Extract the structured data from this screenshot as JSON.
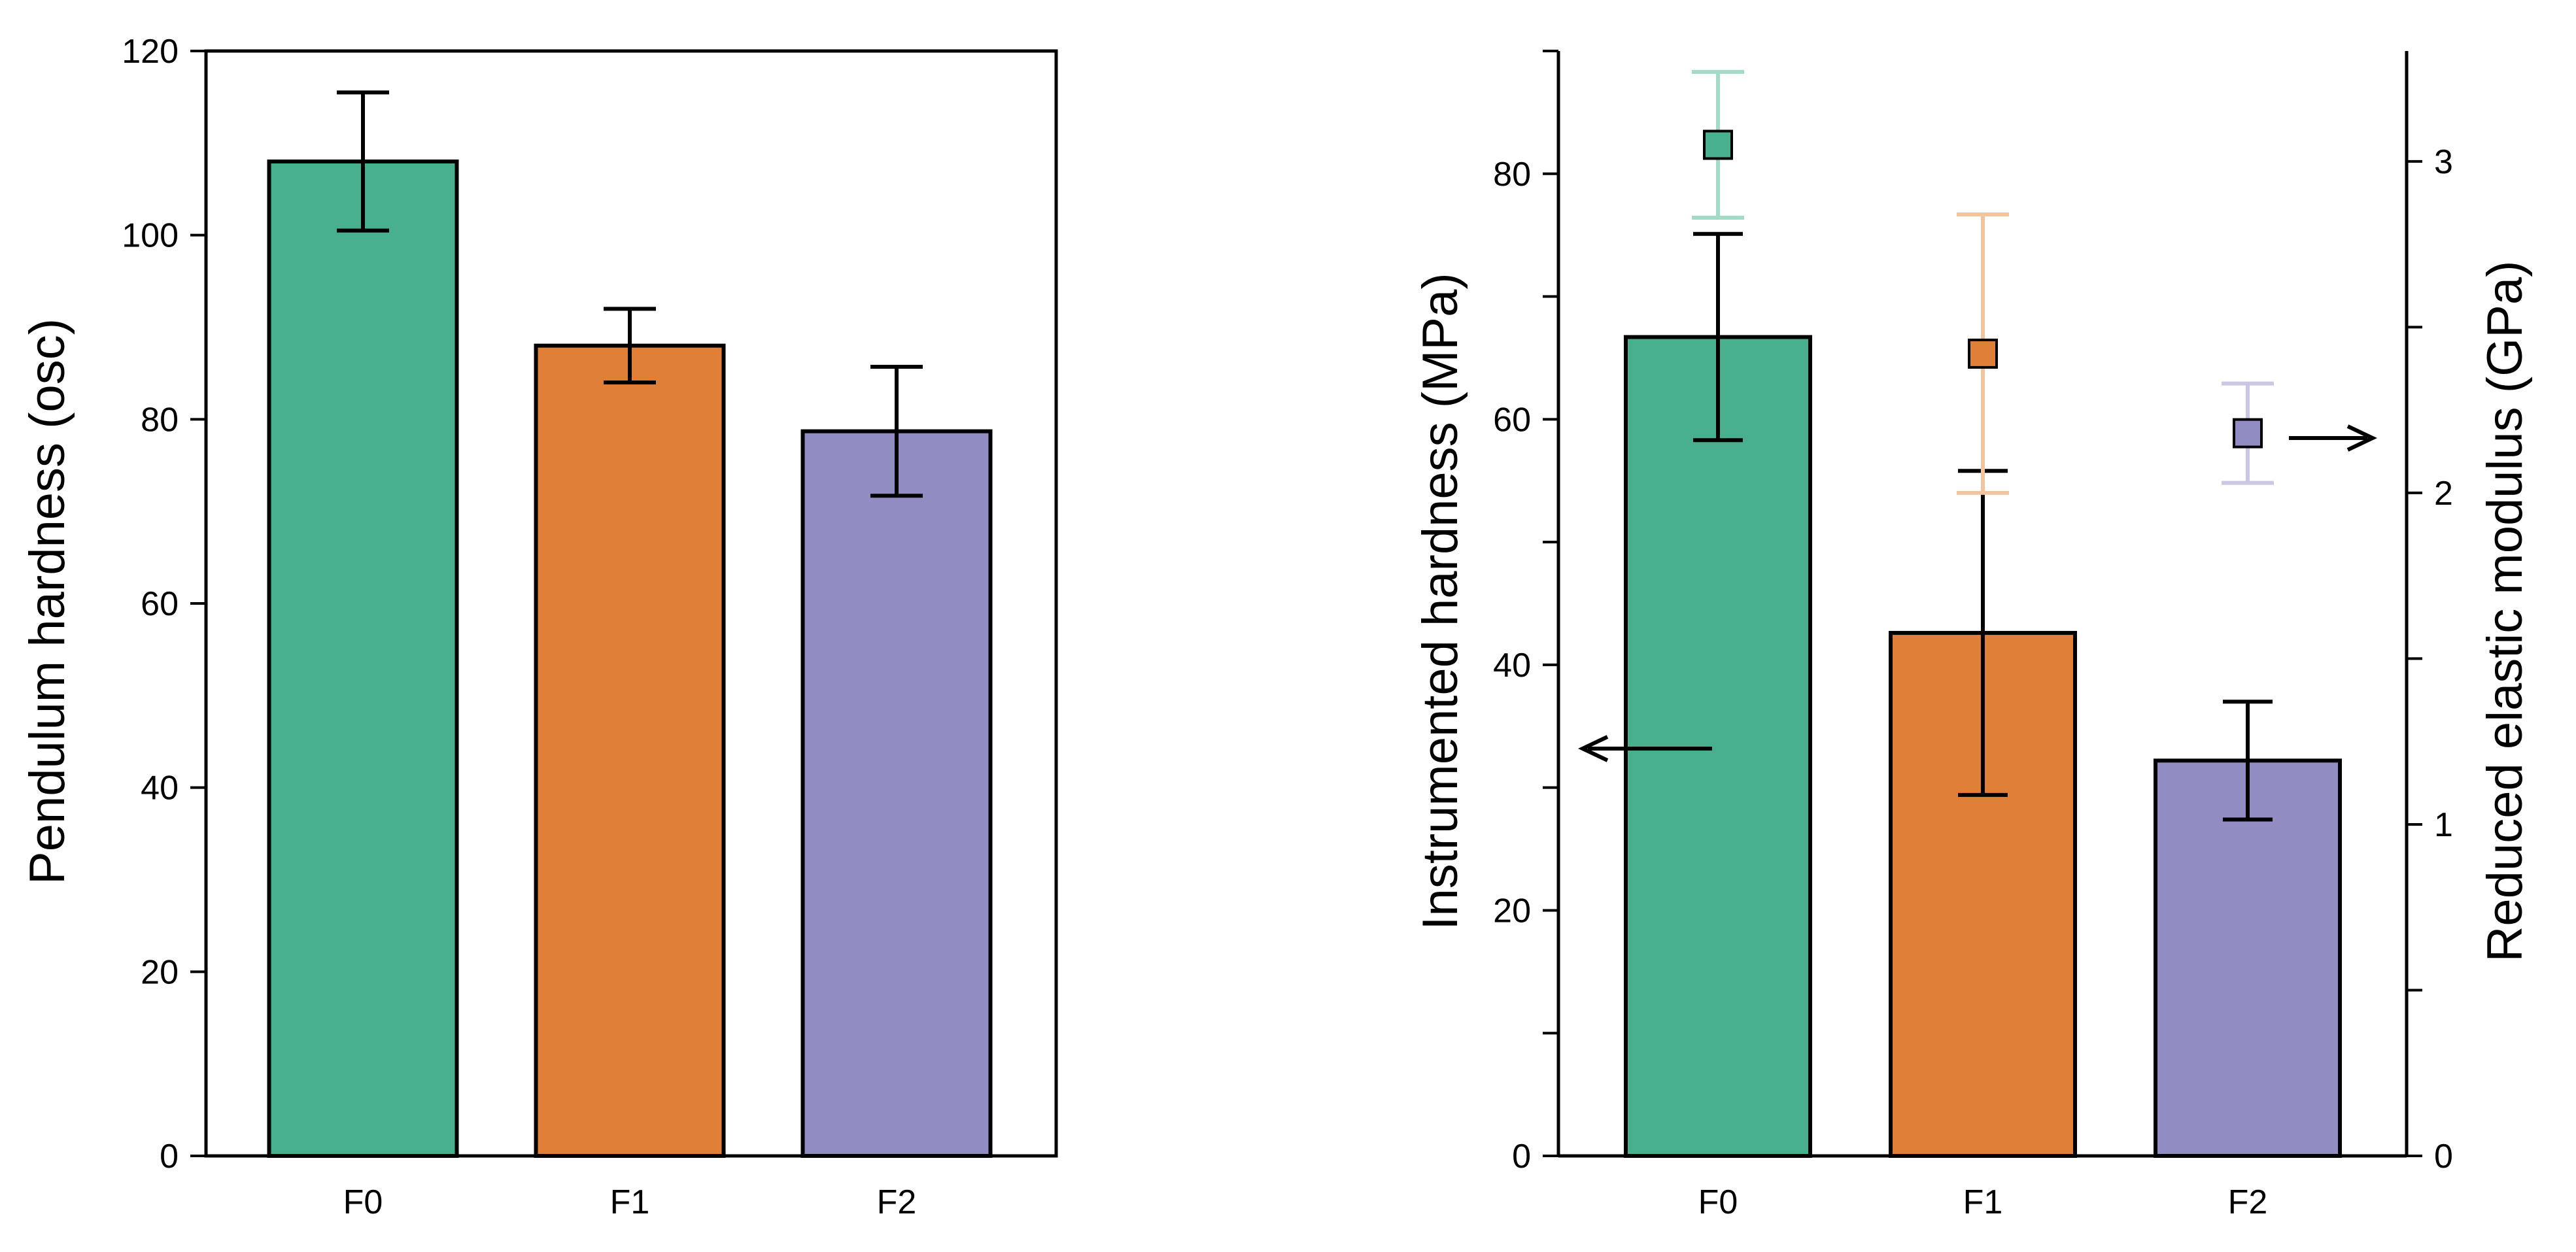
{
  "colors": {
    "F0": "#48b08f",
    "F1": "#e07f37",
    "F2": "#918dc3",
    "F0_light": "#a2dcc6",
    "F1_light": "#f2c49e",
    "F2_light": "#c9c7e4",
    "axis": "#000000"
  },
  "chart_data": [
    {
      "type": "bar",
      "categories": [
        "F0",
        "F1",
        "F2"
      ],
      "values": [
        108,
        88,
        78.7
      ],
      "errors": [
        7.5,
        4,
        7
      ],
      "ylabel": "Pendulum hardness (osc)",
      "ylim": [
        0,
        120
      ],
      "yticks": [
        0,
        20,
        40,
        60,
        80,
        100,
        120
      ],
      "ytick_labels": [
        "0",
        "20",
        "40",
        "60",
        "80",
        "100",
        "120"
      ],
      "xtick_labels": [
        "F0",
        "F1",
        "F2"
      ]
    },
    {
      "type": "bar+scatter",
      "categories": [
        "F0",
        "F1",
        "F2"
      ],
      "bars": {
        "name": "Instrumented hardness",
        "values": [
          66.7,
          42.6,
          32.2
        ],
        "errors": [
          8.4,
          13.2,
          4.8
        ],
        "axis": "left"
      },
      "markers": {
        "name": "Reduced elastic modulus",
        "values": [
          3.05,
          2.42,
          2.18
        ],
        "errors": [
          0.22,
          0.42,
          0.15
        ],
        "axis": "right"
      },
      "ylabel_left": "Instrumented hardness (MPa)",
      "ylabel_right": "Reduced elastic modulus (GPa)",
      "ylim_left": [
        0,
        90
      ],
      "ylim_right": [
        0,
        3.333
      ],
      "yticks_left": [
        0,
        20,
        40,
        60,
        80
      ],
      "ytick_labels_left": [
        "0",
        "20",
        "40",
        "60",
        "80"
      ],
      "yticks_left_minor": [
        10,
        30,
        50,
        70,
        90
      ],
      "yticks_right": [
        0,
        1,
        2,
        3
      ],
      "ytick_labels_right": [
        "0",
        "1",
        "2",
        "3"
      ],
      "yticks_right_minor": [
        0.5,
        1.5,
        2.5
      ],
      "xtick_labels": [
        "F0",
        "F1",
        "F2"
      ],
      "annotations": [
        {
          "type": "arrow",
          "direction": "left",
          "meaning": "bars read on left axis"
        },
        {
          "type": "arrow",
          "direction": "right",
          "meaning": "markers read on right axis"
        }
      ]
    }
  ]
}
